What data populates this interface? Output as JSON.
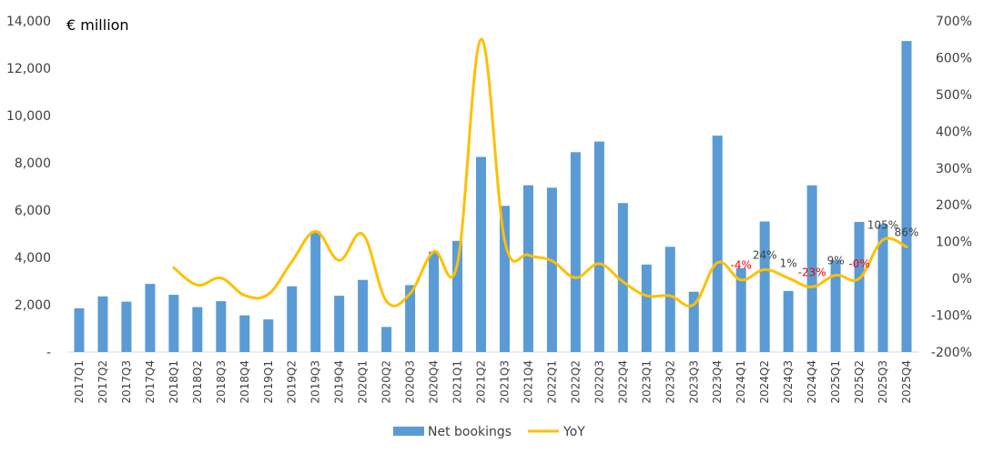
{
  "chart_data": {
    "type": "bar+line",
    "unit_label": "€ million",
    "categories": [
      "2017Q1",
      "2017Q2",
      "2017Q3",
      "2017Q4",
      "2018Q1",
      "2018Q2",
      "2018Q3",
      "2018Q4",
      "2019Q1",
      "2019Q2",
      "2019Q3",
      "2019Q4",
      "2020Q1",
      "2020Q2",
      "2020Q3",
      "2020Q4",
      "2021Q1",
      "2021Q2",
      "2021Q3",
      "2021Q4",
      "2022Q1",
      "2022Q2",
      "2022Q3",
      "2022Q4",
      "2023Q1",
      "2023Q2",
      "2023Q3",
      "2023Q4",
      "2024Q1",
      "2024Q2",
      "2024Q3",
      "2024Q4",
      "2025Q1",
      "2025Q2",
      "2025Q3",
      "2025Q4"
    ],
    "series": [
      {
        "name": "Net bookings",
        "type": "bar",
        "axis": "left",
        "color": "#5B9BD5",
        "values": [
          1850,
          2350,
          2130,
          2880,
          2420,
          1900,
          2150,
          1550,
          1380,
          2780,
          5100,
          2380,
          3050,
          1060,
          2830,
          4250,
          4700,
          8250,
          6180,
          7050,
          6950,
          8450,
          8900,
          6300,
          3700,
          4450,
          2550,
          9150,
          3550,
          5520,
          2580,
          7050,
          3880,
          5500,
          5400,
          13150
        ]
      },
      {
        "name": "YoY",
        "type": "line",
        "axis": "right",
        "color": "#FFC000",
        "values": [
          null,
          null,
          null,
          null,
          29,
          -18,
          1,
          -46,
          -43,
          46,
          128,
          49,
          120,
          -62,
          -41,
          73,
          40,
          650,
          103,
          64,
          48,
          2,
          40,
          -9,
          -47,
          -47,
          -71,
          43,
          -4,
          24,
          1,
          -23,
          9,
          -0.3,
          105,
          86
        ]
      }
    ],
    "data_labels": [
      {
        "category": "2024Q1",
        "text": "-4%",
        "color": "#FF0000"
      },
      {
        "category": "2024Q2",
        "text": "24%",
        "color": "#404040"
      },
      {
        "category": "2024Q3",
        "text": "1%",
        "color": "#404040"
      },
      {
        "category": "2024Q4",
        "text": "-23%",
        "color": "#FF0000"
      },
      {
        "category": "2025Q1",
        "text": "9%",
        "color": "#404040"
      },
      {
        "category": "2025Q2",
        "text": "-0%",
        "color": "#FF0000"
      },
      {
        "category": "2025Q3",
        "text": "105%",
        "color": "#404040"
      },
      {
        "category": "2025Q4",
        "text": "86%",
        "color": "#404040"
      }
    ],
    "y_left": {
      "min": 0,
      "max": 14000,
      "step": 2000,
      "ticks": [
        "-",
        "2,000",
        "4,000",
        "6,000",
        "8,000",
        "10,000",
        "12,000",
        "14,000"
      ]
    },
    "y_right": {
      "min": -200,
      "max": 700,
      "step": 100,
      "ticks": [
        "-200%",
        "-100%",
        "0%",
        "100%",
        "200%",
        "300%",
        "400%",
        "500%",
        "600%",
        "700%"
      ]
    },
    "legend": {
      "position": "bottom-center",
      "items": [
        "Net bookings",
        "YoY"
      ]
    },
    "grid": false
  }
}
